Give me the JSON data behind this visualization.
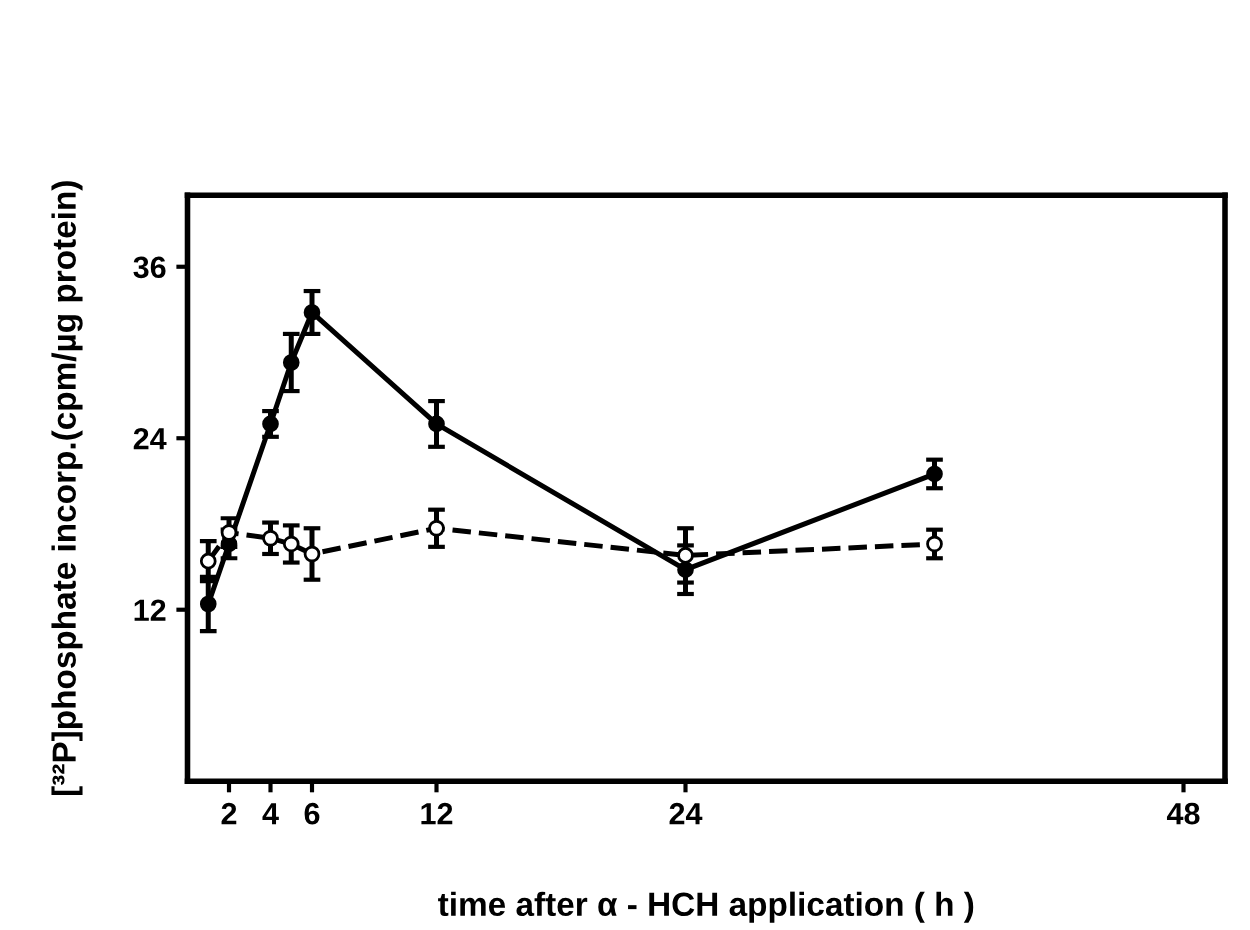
{
  "chart_data": {
    "type": "line",
    "xlabel": "time after α - HCH application ( h )",
    "ylabel": "[³²P]phosphate incorp.(cpm/µg protein)",
    "x": [
      1,
      2,
      4,
      5,
      6,
      12,
      24,
      36
    ],
    "xlim": [
      0,
      50
    ],
    "xticks": [
      2,
      4,
      6,
      12,
      24,
      48
    ],
    "ylim": [
      0,
      41
    ],
    "yticks": [
      12,
      24,
      36
    ],
    "grid": false,
    "legend": false,
    "marker": "circle",
    "series": [
      {
        "color": "#000000",
        "line_style": "solid",
        "values": [
          12.4,
          16.6,
          25.0,
          29.3,
          32.8,
          25.0,
          14.8,
          21.5
        ],
        "errors": [
          1.9,
          1.0,
          0.9,
          2.0,
          1.5,
          1.6,
          1.7,
          1.0
        ]
      },
      {
        "color": "#000000",
        "line_style": "dashed",
        "values": [
          15.4,
          17.4,
          17.0,
          16.6,
          15.9,
          17.7,
          15.8,
          16.6
        ],
        "errors": [
          1.4,
          1.0,
          1.1,
          1.3,
          1.8,
          1.3,
          1.9,
          1.0
        ]
      }
    ]
  }
}
